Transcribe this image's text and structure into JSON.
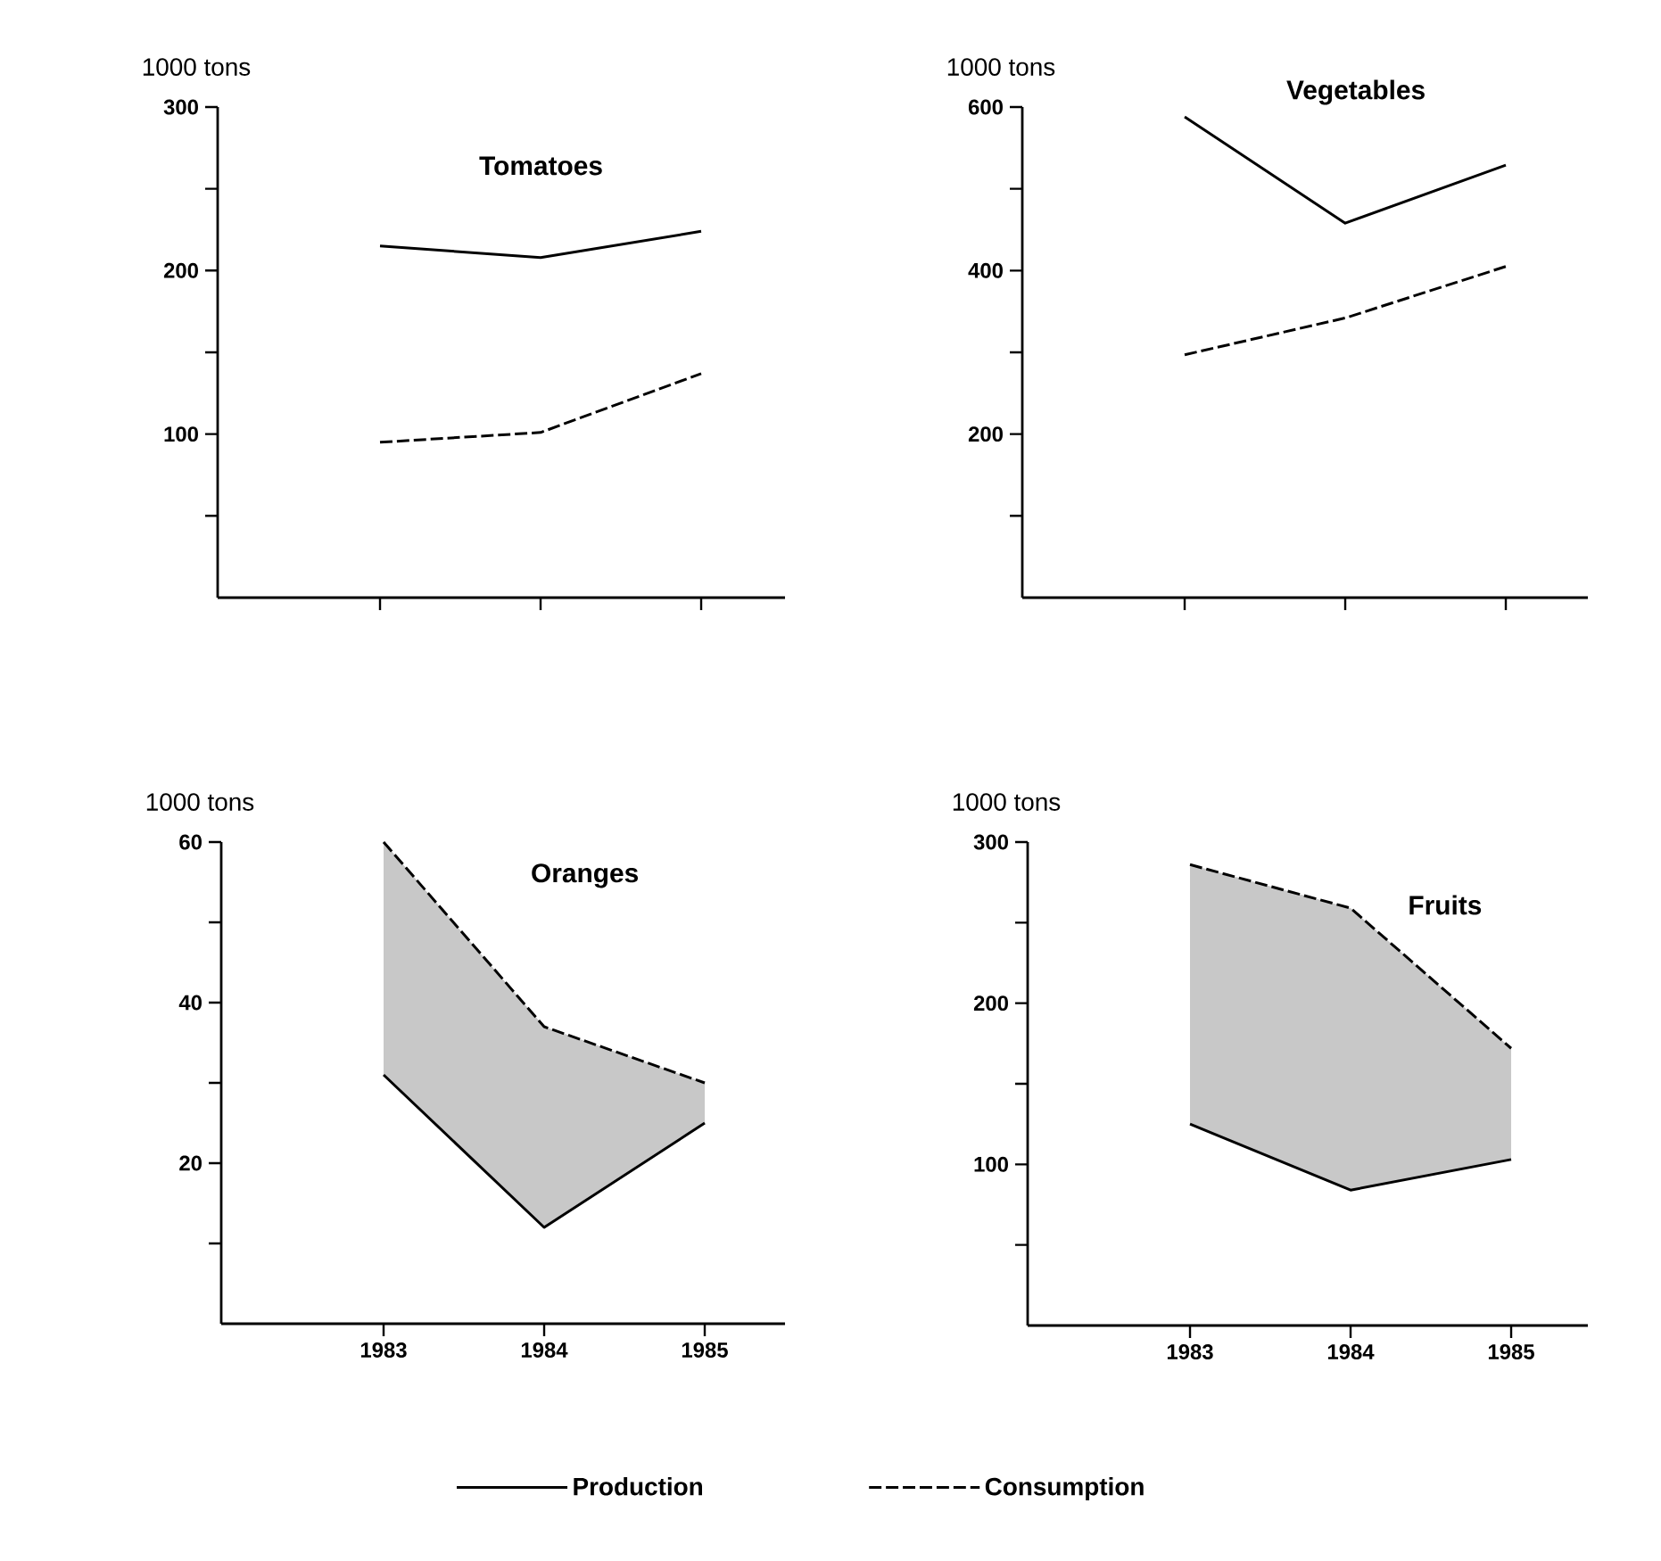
{
  "chart_data": [
    {
      "type": "line",
      "title": "Tomatoes",
      "ylabel": "1000 tons",
      "categories": [
        "1983",
        "1984",
        "1985"
      ],
      "tick_labels": "y",
      "ylim": [
        0,
        300
      ],
      "yticks": [
        {
          "value": 50,
          "label": null
        },
        100,
        {
          "value": 150,
          "label": null
        },
        200,
        {
          "value": 250,
          "label": null
        },
        300
      ],
      "series": [
        {
          "color": "#000000",
          "line_style": "solid",
          "values": [
            215,
            208,
            224
          ]
        },
        {
          "color": "#000000",
          "line_style": "dashed",
          "values": [
            95,
            101,
            137
          ]
        }
      ]
    },
    {
      "type": "line",
      "title": "Vegetables",
      "ylabel": "1000 tons",
      "categories": [
        "1983",
        "1984",
        "1985"
      ],
      "tick_labels": "y",
      "ylim": [
        0,
        600
      ],
      "yticks": [
        {
          "value": 100,
          "label": null
        },
        200,
        {
          "value": 300,
          "label": null
        },
        400,
        {
          "value": 500,
          "label": null
        },
        600
      ],
      "series": [
        {
          "color": "#000000",
          "line_style": "solid",
          "values": [
            588,
            458,
            529
          ]
        },
        {
          "color": "#000000",
          "line_style": "dashed",
          "values": [
            297,
            342,
            405
          ]
        }
      ]
    },
    {
      "type": "line",
      "title": "Oranges",
      "ylabel": "1000 tons",
      "categories": [
        "1983",
        "1984",
        "1985"
      ],
      "legend": "bottom",
      "ylim": [
        0,
        60
      ],
      "yticks": [
        {
          "value": 10,
          "label": null
        },
        20,
        {
          "value": 30,
          "label": null
        },
        40,
        {
          "value": 50,
          "label": null
        },
        60
      ],
      "series": [
        {
          "name": "Production",
          "color": "#000000",
          "line_style": "solid",
          "values": [
            31,
            12,
            25
          ]
        },
        {
          "name": "Consumption",
          "color": "#000000",
          "line_style": "dashed",
          "values": [
            60,
            37,
            30
          ],
          "lower": [
            31,
            12,
            25
          ],
          "upper": [
            60,
            37,
            30
          ]
        }
      ]
    },
    {
      "type": "line",
      "title": "Fruits",
      "ylabel": "1000 tons",
      "categories": [
        "1983",
        "1984",
        "1985"
      ],
      "ylim": [
        0,
        300
      ],
      "yticks": [
        {
          "value": 50,
          "label": null
        },
        100,
        {
          "value": 150,
          "label": null
        },
        200,
        {
          "value": 250,
          "label": null
        },
        300
      ],
      "series": [
        {
          "color": "#000000",
          "line_style": "solid",
          "values": [
            125,
            84,
            103
          ]
        },
        {
          "color": "#000000",
          "line_style": "dashed",
          "values": [
            286,
            259,
            172
          ],
          "lower": [
            125,
            84,
            103
          ],
          "upper": [
            286,
            259,
            172
          ]
        }
      ]
    }
  ]
}
